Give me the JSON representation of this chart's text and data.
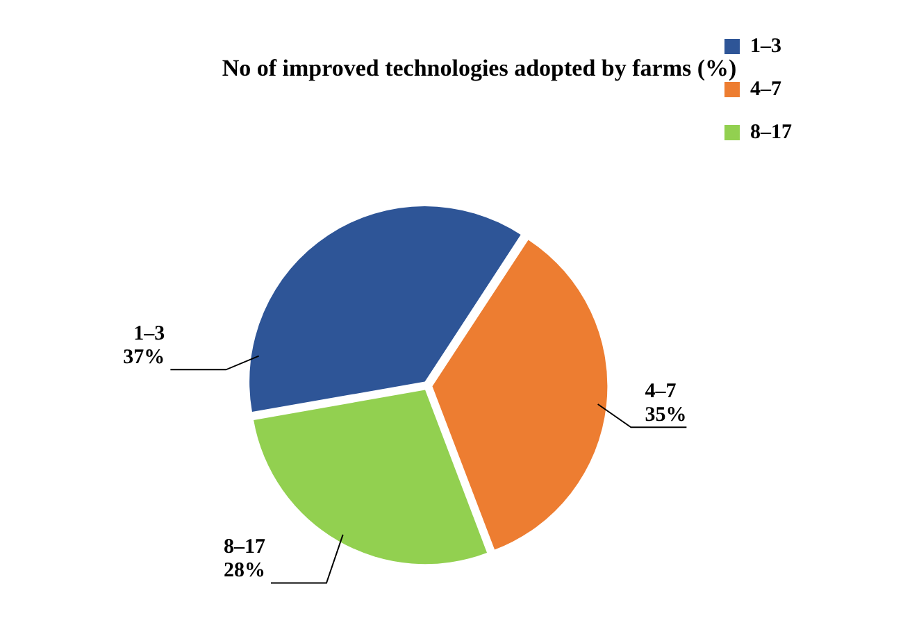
{
  "chart_data": {
    "type": "pie",
    "title": "No of improved technologies adopted by farms (%)",
    "categories": [
      "1–3",
      "4–7",
      "8–17"
    ],
    "values": [
      37,
      35,
      28
    ],
    "colors": [
      "#2e5597",
      "#ed7d31",
      "#92d050"
    ],
    "value_labels": [
      "37%",
      "35%",
      "28%"
    ],
    "legend": "right"
  }
}
